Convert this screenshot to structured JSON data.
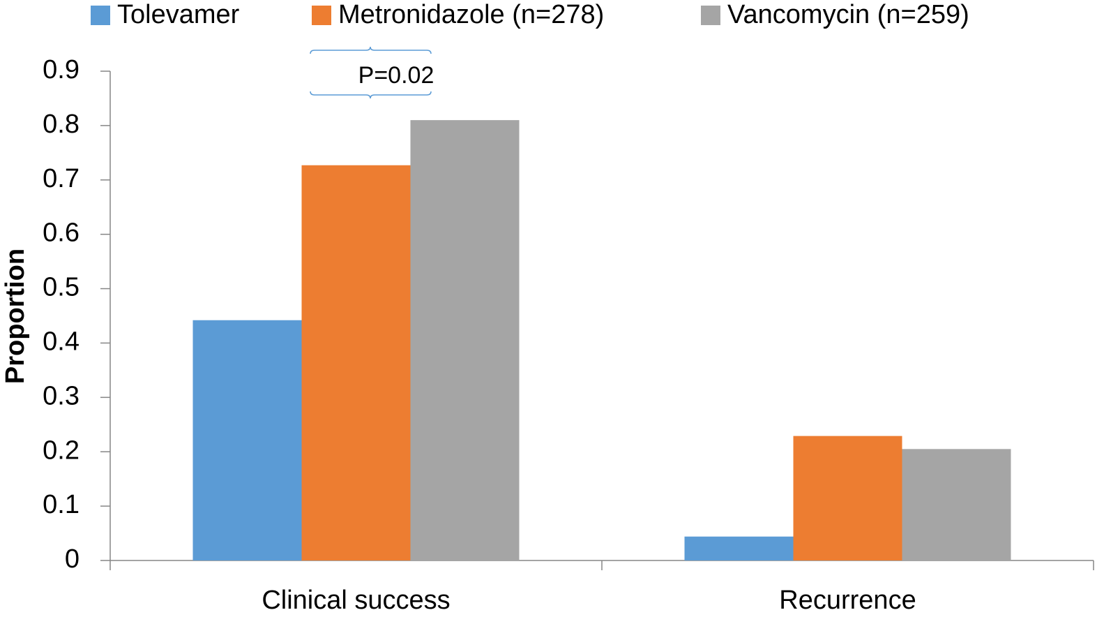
{
  "chart_data": {
    "type": "bar",
    "categories": [
      "Clinical success",
      "Recurrence"
    ],
    "series": [
      {
        "name": "Tolevamer",
        "color": "#5b9bd5",
        "values": [
          0.442,
          0.044
        ]
      },
      {
        "name": "Metronidazole (n=278)",
        "color": "#ed7d31",
        "values": [
          0.727,
          0.229
        ]
      },
      {
        "name": "Vancomycin (n=259)",
        "color": "#a5a5a5",
        "values": [
          0.81,
          0.205
        ]
      }
    ],
    "y_label": "Proportion",
    "ylim": [
      0,
      0.9
    ],
    "yticks": [
      0,
      0.1,
      0.2,
      0.3,
      0.4,
      0.5,
      0.6,
      0.7,
      0.8,
      0.9
    ],
    "annotations": [
      "P=0.02"
    ],
    "legend": "top"
  }
}
